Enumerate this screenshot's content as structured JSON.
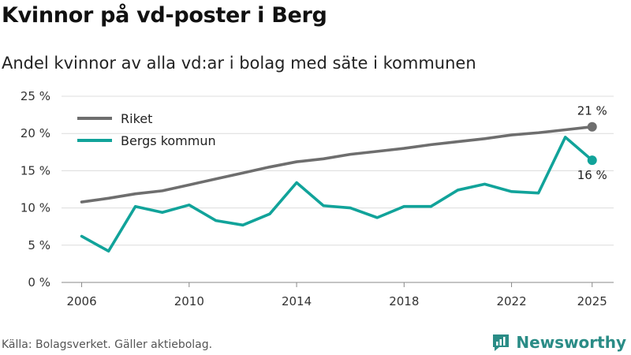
{
  "chart_data": {
    "type": "line",
    "title": "Kvinnor på vd-poster i Berg",
    "subtitle": "Andel kvinnor av alla vd:ar i bolag med säte i kommunen",
    "x": [
      2006,
      2007,
      2008,
      2009,
      2010,
      2011,
      2012,
      2013,
      2014,
      2015,
      2016,
      2017,
      2018,
      2019,
      2020,
      2021,
      2022,
      2023,
      2024,
      2025
    ],
    "xticks": [
      2006,
      2010,
      2014,
      2018,
      2022,
      2025
    ],
    "xtick_labels": [
      "2006",
      "2010",
      "2014",
      "2018",
      "2022",
      "2025"
    ],
    "yticks": [
      0,
      5,
      10,
      15,
      20,
      25
    ],
    "ytick_labels": [
      "0 %",
      "5 %",
      "10 %",
      "15 %",
      "20 %",
      "25 %"
    ],
    "ylim": [
      0,
      25
    ],
    "xlim": [
      2006,
      2025
    ],
    "xlabel": "",
    "ylabel": "",
    "grid": true,
    "legend_position": "top-left",
    "series": [
      {
        "name": "Riket",
        "color": "#6e6e6e",
        "values": [
          10.8,
          11.3,
          11.9,
          12.3,
          13.1,
          13.9,
          14.7,
          15.5,
          16.2,
          16.6,
          17.2,
          17.6,
          18.0,
          18.5,
          18.9,
          19.3,
          19.8,
          20.1,
          20.5,
          20.9
        ],
        "end_label": "21 %"
      },
      {
        "name": "Bergs kommun",
        "color": "#11a39a",
        "values": [
          6.2,
          4.2,
          10.2,
          9.4,
          10.4,
          8.3,
          7.7,
          9.2,
          13.4,
          10.3,
          10.0,
          8.7,
          10.2,
          10.2,
          12.4,
          13.2,
          12.2,
          12.0,
          19.5,
          16.4
        ],
        "end_label": "16 %"
      }
    ]
  },
  "footer": {
    "source": "Källa: Bolagsverket. Gäller aktiebolag.",
    "brand": "Newsworthy",
    "brand_icon": "newsworthy-logo-icon",
    "brand_color": "#2a8c86"
  }
}
